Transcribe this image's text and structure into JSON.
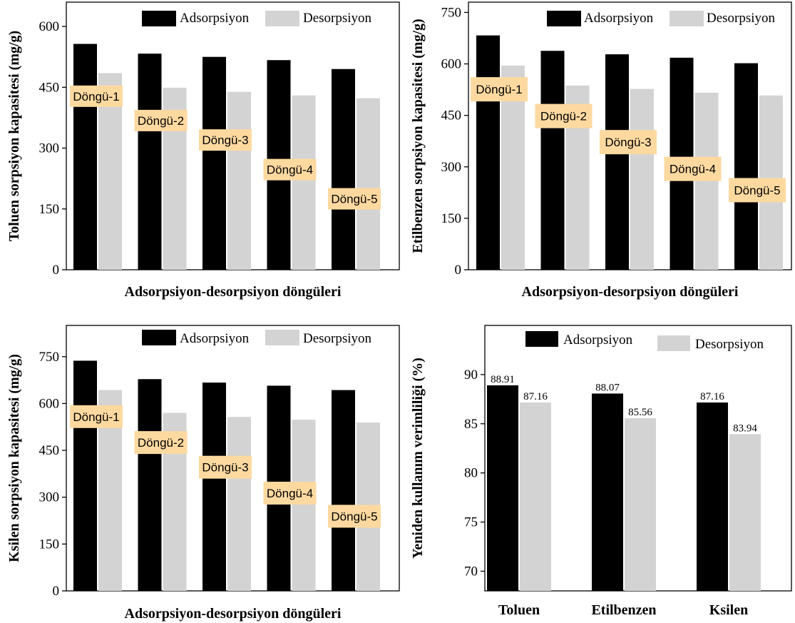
{
  "colors": {
    "adsorption": "#000000",
    "desorption": "#d3d3d3",
    "cycle_box": "#fdd9a0",
    "axis": "#000000"
  },
  "chart_data": [
    {
      "type": "bar",
      "ylabel": "Toluen sorpsiyon kapasitesi (mg/g)",
      "xlabel": "Adsorpsiyon-desorpsiyon döngüleri",
      "ylim": [
        0,
        660
      ],
      "yticks": [
        0,
        150,
        300,
        450,
        600
      ],
      "categories": [
        "",
        "",
        "",
        "",
        ""
      ],
      "series": [
        {
          "name": "Adsorpsiyon",
          "values": [
            557,
            533,
            525,
            517,
            495
          ]
        },
        {
          "name": "Desorpsiyon",
          "values": [
            485,
            449,
            439,
            430,
            423
          ]
        }
      ],
      "cycle_labels": [
        "Döngü-1",
        "Döngü-2",
        "Döngü-3",
        "Döngü-4",
        "Döngü-5"
      ],
      "cycle_label_y": [
        428,
        368,
        320,
        247,
        175
      ],
      "legend": "top-right"
    },
    {
      "type": "bar",
      "ylabel": "Etilbenzen sorpsiyon kapasitesi (mg/g)",
      "xlabel": "Adsorpsiyon-desorpsiyon döngüleri",
      "ylim": [
        0,
        780
      ],
      "yticks": [
        0,
        150,
        300,
        450,
        600,
        750
      ],
      "categories": [
        "",
        "",
        "",
        "",
        ""
      ],
      "series": [
        {
          "name": "Adsorpsiyon",
          "values": [
            683,
            638,
            628,
            618,
            602
          ]
        },
        {
          "name": "Desorpsiyon",
          "values": [
            595,
            537,
            527,
            516,
            508
          ]
        }
      ],
      "cycle_labels": [
        "Döngü-1",
        "Döngü-2",
        "Döngü-3",
        "Döngü-4",
        "Döngü-5"
      ],
      "cycle_label_y": [
        526,
        448,
        372,
        294,
        232
      ],
      "legend": "top-right"
    },
    {
      "type": "bar",
      "ylabel": "Ksilen sorpsiyon kapasitesi (mg/g)",
      "xlabel": "Adsorpsiyon-desorpsiyon döngüleri",
      "ylim": [
        0,
        850
      ],
      "yticks": [
        0,
        150,
        300,
        450,
        600,
        750
      ],
      "categories": [
        "",
        "",
        "",
        "",
        ""
      ],
      "series": [
        {
          "name": "Adsorpsiyon",
          "values": [
            737,
            678,
            667,
            657,
            643
          ]
        },
        {
          "name": "Desorpsiyon",
          "values": [
            643,
            570,
            557,
            548,
            539
          ]
        }
      ],
      "cycle_labels": [
        "Döngü-1",
        "Döngü-2",
        "Döngü-3",
        "Döngü-4",
        "Döngü-5"
      ],
      "cycle_label_y": [
        558,
        475,
        396,
        313,
        239
      ],
      "legend": "top-right"
    },
    {
      "type": "bar",
      "ylabel": "Yeniden kullanım verimliliği (%)",
      "xlabel": "",
      "ylim": [
        68,
        95
      ],
      "yticks": [
        70,
        75,
        80,
        85,
        90
      ],
      "categories": [
        "Toluen",
        "Etilbenzen",
        "Ksilen"
      ],
      "series": [
        {
          "name": "Adsorpsiyon",
          "values": [
            88.91,
            88.07,
            87.16
          ]
        },
        {
          "name": "Desorpsiyon",
          "values": [
            87.16,
            85.56,
            83.94
          ]
        }
      ],
      "value_labels": [
        [
          "88.91",
          "87.16"
        ],
        [
          "88.07",
          "85.56"
        ],
        [
          "87.16",
          "83.94"
        ]
      ],
      "legend": "top"
    }
  ]
}
